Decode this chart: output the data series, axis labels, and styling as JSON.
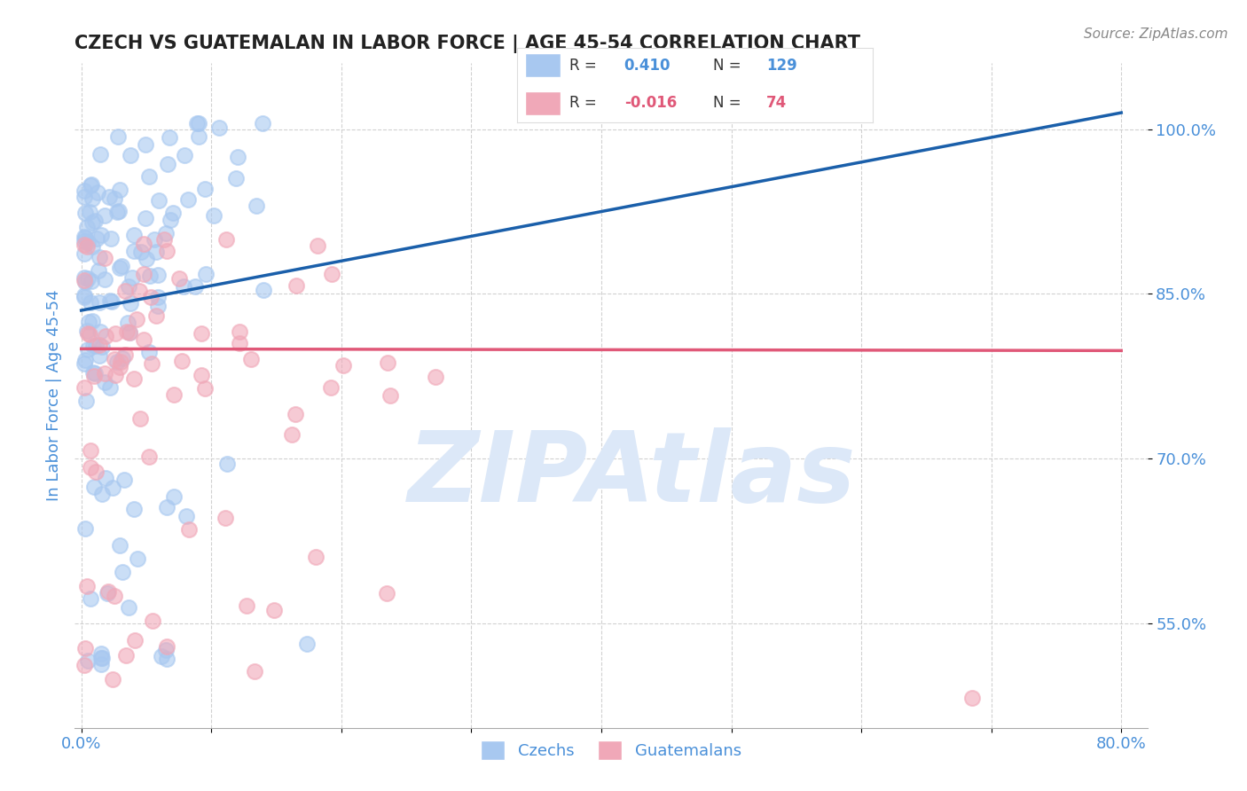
{
  "title": "CZECH VS GUATEMALAN IN LABOR FORCE | AGE 45-54 CORRELATION CHART",
  "source": "Source: ZipAtlas.com",
  "ylabel": "In Labor Force | Age 45-54",
  "x_ticks": [
    0.0,
    0.1,
    0.2,
    0.3,
    0.4,
    0.5,
    0.6,
    0.7,
    0.8
  ],
  "x_tick_labels": [
    "0.0%",
    "",
    "",
    "",
    "",
    "",
    "",
    "",
    "80.0%"
  ],
  "y_ticks": [
    0.55,
    0.7,
    0.85,
    1.0
  ],
  "y_tick_labels": [
    "55.0%",
    "70.0%",
    "85.0%",
    "100.0%"
  ],
  "xlim": [
    -0.005,
    0.82
  ],
  "ylim": [
    0.455,
    1.06
  ],
  "czech_R": 0.41,
  "czech_N": 129,
  "guatemalan_R": -0.016,
  "guatemalan_N": 74,
  "czech_color": "#a8c8f0",
  "guatemalan_color": "#f0a8b8",
  "czech_line_color": "#1a5faa",
  "guatemalan_line_color": "#e05878",
  "background_color": "#ffffff",
  "grid_color": "#cccccc",
  "title_color": "#222222",
  "tick_color": "#4a90d9",
  "watermark_color": "#dce8f8",
  "watermark_text": "ZIPAtlas",
  "legend_text_color": "#333333",
  "seed": 42
}
